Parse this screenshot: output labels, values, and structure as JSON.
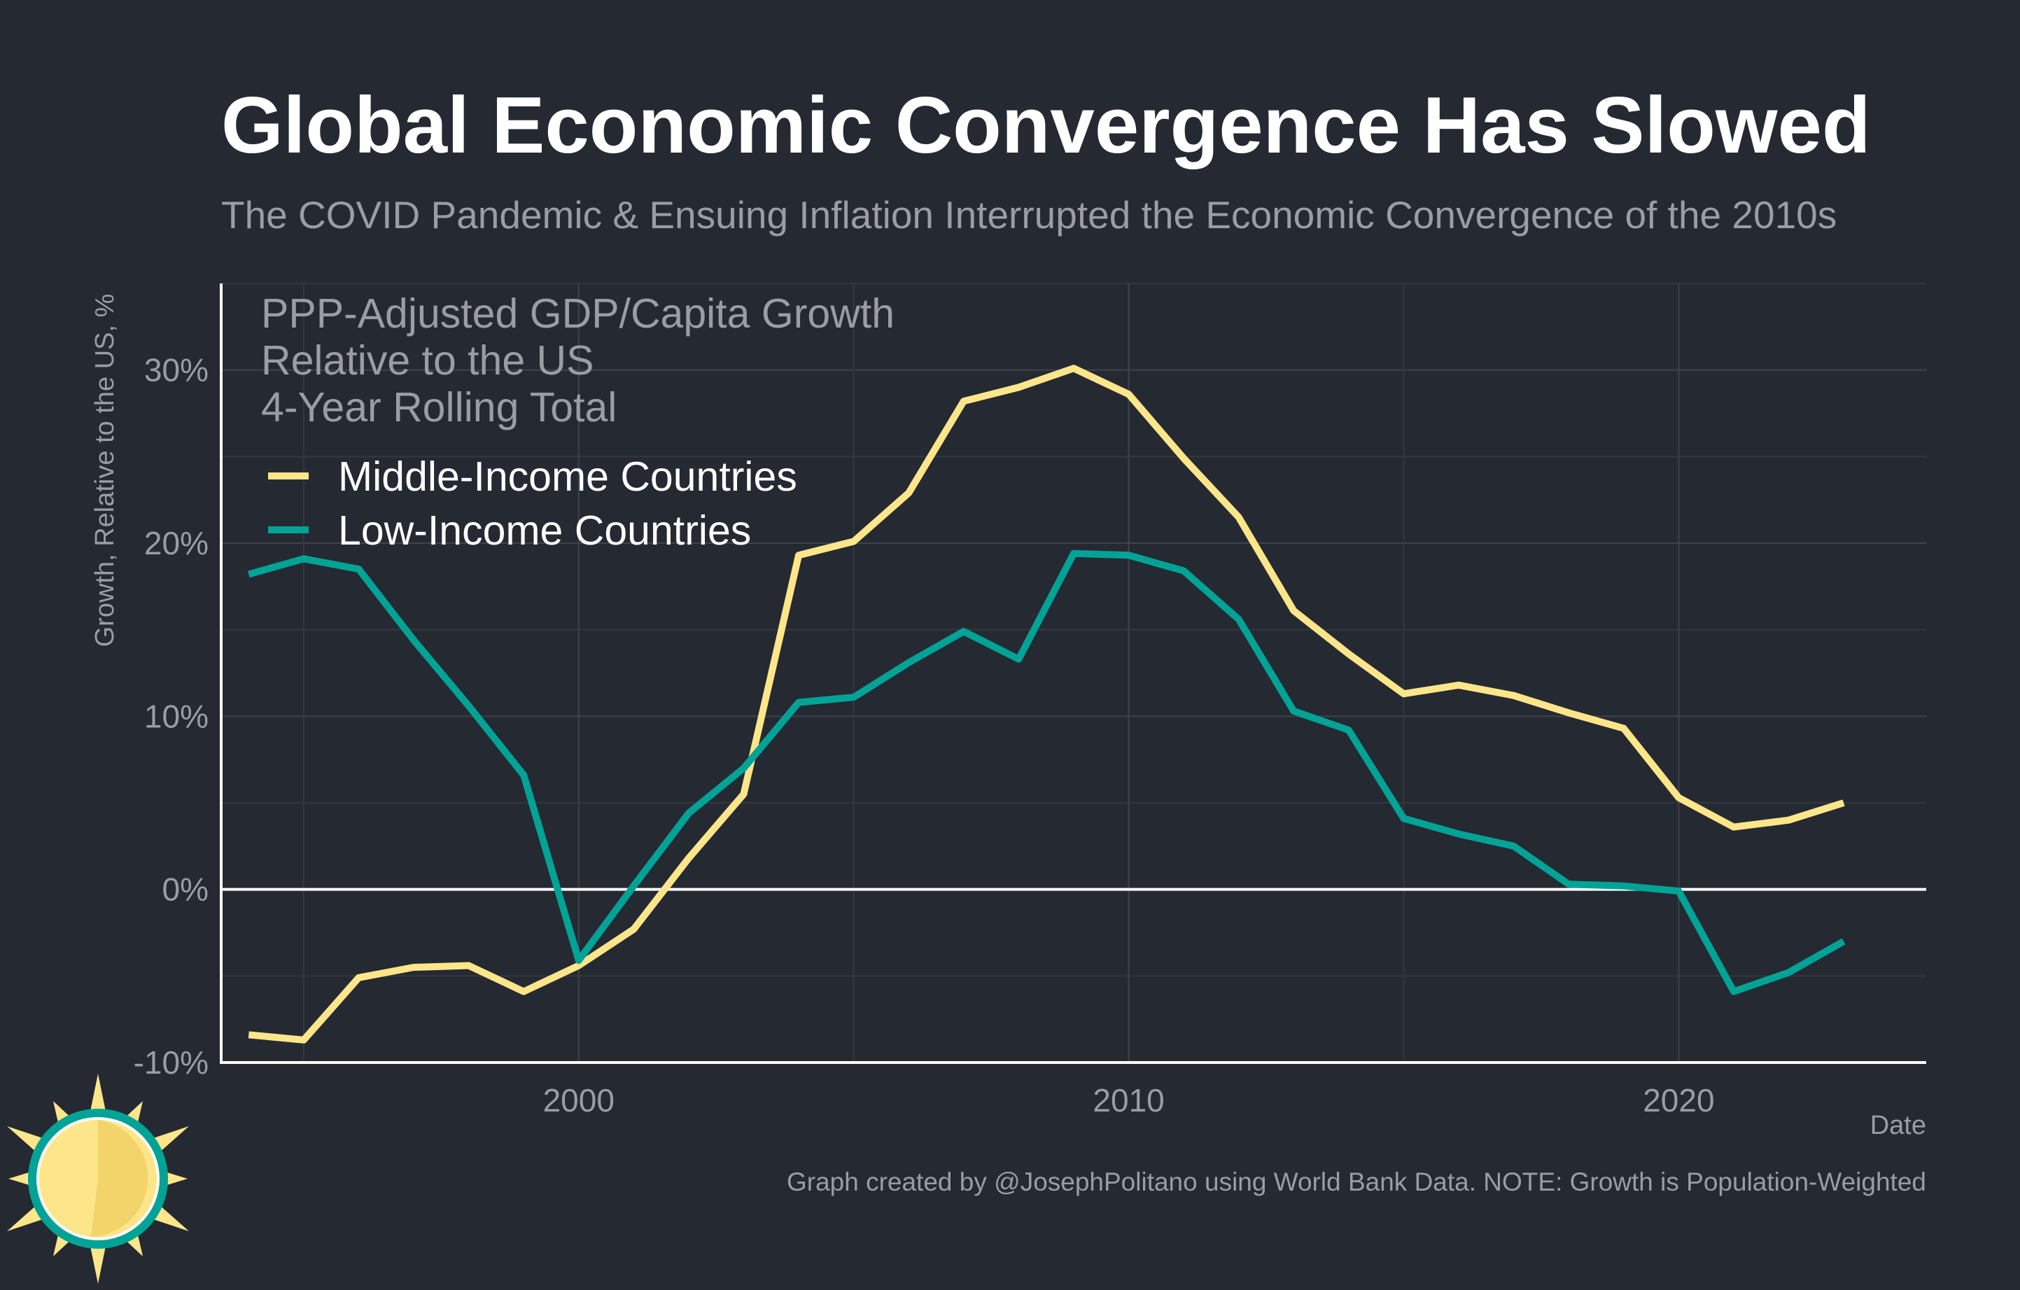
{
  "header": {
    "title": "Global Economic Convergence Has Slowed",
    "subtitle": "The COVID Pandemic & Ensuing Inflation Interrupted the Economic Convergence of the 2010s"
  },
  "annotation": {
    "lines": [
      "PPP-Adjusted GDP/Capita Growth",
      "Relative to the US",
      "4-Year Rolling Total"
    ]
  },
  "caption": "Graph created by @JosephPolitano using World Bank Data. NOTE: Growth is Population-Weighted",
  "logo": {
    "icon": "sun-icon"
  },
  "colors": {
    "background": "#252932",
    "middle_income": "#fde68a",
    "low_income": "#00a396",
    "zero_line": "#ffffff",
    "axis": "#ffffff",
    "text_muted": "#9a9da3"
  },
  "chart_data": {
    "type": "line",
    "title": "Global Economic Convergence Has Slowed",
    "subtitle": "The COVID Pandemic & Ensuing Inflation Interrupted the Economic Convergence of the 2010s",
    "xlabel": "Date",
    "ylabel": "Growth, Relative to the US, %",
    "xlim": [
      1993.5,
      2024.5
    ],
    "ylim": [
      -10,
      35
    ],
    "x_ticks": [
      2000,
      2010,
      2020
    ],
    "x_tick_labels": [
      "2000",
      "2010",
      "2020"
    ],
    "y_ticks": [
      -10,
      0,
      10,
      20,
      30
    ],
    "y_tick_labels": [
      "-10%",
      "0%",
      "10%",
      "20%",
      "30%"
    ],
    "grid": true,
    "legend_position": "top-left",
    "x": [
      1994,
      1995,
      1996,
      1997,
      1998,
      1999,
      2000,
      2001,
      2002,
      2003,
      2004,
      2005,
      2006,
      2007,
      2008,
      2009,
      2010,
      2011,
      2012,
      2013,
      2014,
      2015,
      2016,
      2017,
      2018,
      2019,
      2020,
      2021,
      2022,
      2023
    ],
    "series": [
      {
        "name": "Middle-Income Countries",
        "color": "#fde68a",
        "values": [
          -8.4,
          -8.7,
          -5.1,
          -4.5,
          -4.4,
          -5.9,
          -4.4,
          -2.3,
          1.8,
          5.5,
          19.3,
          20.1,
          22.9,
          28.2,
          29.0,
          30.1,
          28.6,
          24.9,
          21.5,
          16.1,
          13.6,
          11.3,
          11.8,
          11.2,
          10.2,
          9.3,
          5.3,
          3.6,
          4.0,
          5.0
        ]
      },
      {
        "name": "Low-Income Countries",
        "color": "#00a396",
        "values": [
          18.2,
          19.1,
          18.5,
          14.4,
          10.6,
          6.6,
          -4.1,
          0.2,
          4.4,
          7.0,
          10.8,
          11.1,
          13.1,
          14.9,
          13.3,
          19.4,
          19.3,
          18.4,
          15.6,
          10.3,
          9.2,
          4.1,
          3.2,
          2.5,
          0.3,
          0.2,
          -0.1,
          -5.9,
          -4.8,
          -3.0
        ]
      }
    ]
  }
}
